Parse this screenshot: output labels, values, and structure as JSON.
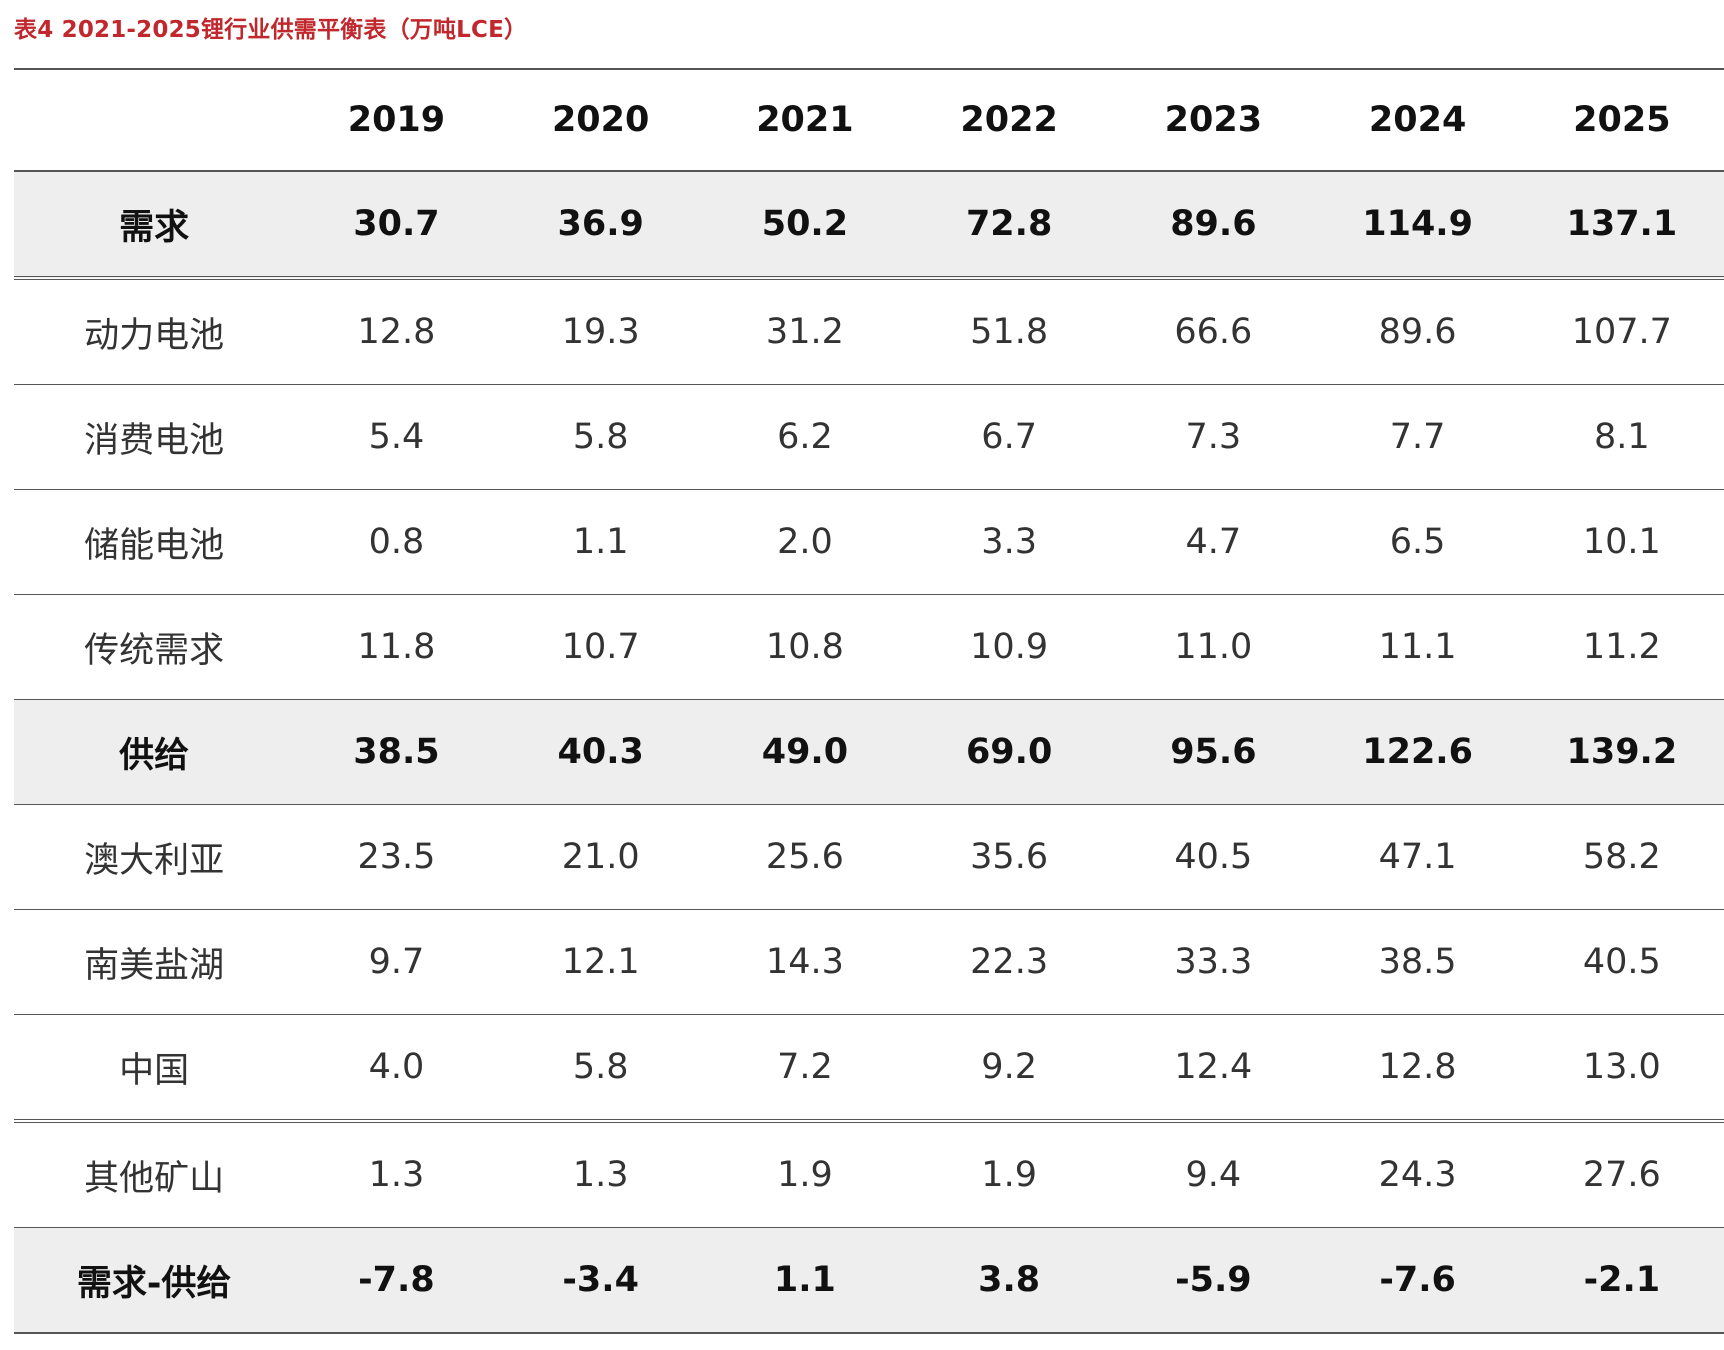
{
  "chart_data": {
    "type": "table",
    "title": "表4 2021-2025锂行业供需平衡表（万吨LCE）",
    "columns": [
      "",
      "2019",
      "2020",
      "2021",
      "2022",
      "2023",
      "2024",
      "2025"
    ],
    "rows": [
      {
        "label": "需求",
        "values": [
          "30.7",
          "36.9",
          "50.2",
          "72.8",
          "89.6",
          "114.9",
          "137.1"
        ]
      },
      {
        "label": "动力电池",
        "values": [
          "12.8",
          "19.3",
          "31.2",
          "51.8",
          "66.6",
          "89.6",
          "107.7"
        ]
      },
      {
        "label": "消费电池",
        "values": [
          "5.4",
          "5.8",
          "6.2",
          "6.7",
          "7.3",
          "7.7",
          "8.1"
        ]
      },
      {
        "label": "储能电池",
        "values": [
          "0.8",
          "1.1",
          "2.0",
          "3.3",
          "4.7",
          "6.5",
          "10.1"
        ]
      },
      {
        "label": "传统需求",
        "values": [
          "11.8",
          "10.7",
          "10.8",
          "10.9",
          "11.0",
          "11.1",
          "11.2"
        ]
      },
      {
        "label": "供给",
        "values": [
          "38.5",
          "40.3",
          "49.0",
          "69.0",
          "95.6",
          "122.6",
          "139.2"
        ]
      },
      {
        "label": "澳大利亚",
        "values": [
          "23.5",
          "21.0",
          "25.6",
          "35.6",
          "40.5",
          "47.1",
          "58.2"
        ]
      },
      {
        "label": "南美盐湖",
        "values": [
          "9.7",
          "12.1",
          "14.3",
          "22.3",
          "33.3",
          "38.5",
          "40.5"
        ]
      },
      {
        "label": "中国",
        "values": [
          "4.0",
          "5.8",
          "7.2",
          "9.2",
          "12.4",
          "12.8",
          "13.0"
        ]
      },
      {
        "label": "其他矿山",
        "values": [
          "1.3",
          "1.3",
          "1.9",
          "1.9",
          "9.4",
          "24.3",
          "27.6"
        ]
      },
      {
        "label": "需求-供给",
        "values": [
          "-7.8",
          "-3.4",
          "1.1",
          "3.8",
          "-5.9",
          "-7.6",
          "-2.1"
        ]
      }
    ]
  }
}
